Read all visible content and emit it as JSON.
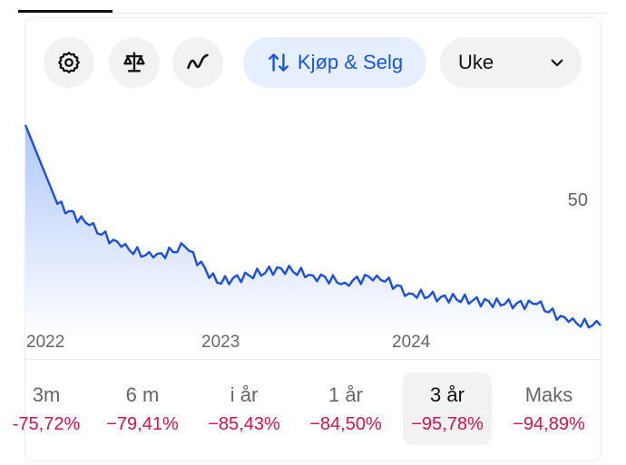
{
  "toolbar": {
    "settings_icon": "gear-icon",
    "compare_icon": "scale-icon",
    "indicator_icon": "wave-icon",
    "trade_icon": "arrows-up-down-icon",
    "trade_label": "Kjøp & Selg",
    "period_value": "Uke",
    "period_icon": "chevron-down-icon"
  },
  "colors": {
    "line": "#1a4fe6",
    "accent": "#1755e8",
    "negative": "#d1134f"
  },
  "chart_data": {
    "type": "area",
    "y_axis_labels": [
      "50"
    ],
    "x_axis_labels": [
      "2022",
      "2023",
      "2024"
    ],
    "x": [
      "2021-11",
      "2022-01",
      "2022-03",
      "2022-05",
      "2022-07",
      "2022-09",
      "2022-11",
      "2023-01",
      "2023-03",
      "2023-05",
      "2023-07",
      "2023-09",
      "2023-11",
      "2024-01",
      "2024-03",
      "2024-05",
      "2024-07",
      "2024-09",
      "2024-11"
    ],
    "series": [
      {
        "values": [
          80,
          58,
          52,
          46,
          43,
          46,
          36,
          38,
          40,
          38,
          36,
          38,
          33,
          32,
          31,
          30,
          30,
          25,
          24
        ]
      }
    ],
    "ylim": [
      20,
      82
    ],
    "grid": false,
    "legend": "none"
  },
  "ranges": [
    {
      "label": "3m",
      "change": "-75,72%"
    },
    {
      "label": "6 m",
      "change": "−79,41%"
    },
    {
      "label": "i år",
      "change": "−85,43%"
    },
    {
      "label": "1 år",
      "change": "−84,50%"
    },
    {
      "label": "3 år",
      "change": "−95,78%"
    },
    {
      "label": "Maks",
      "change": "−94,89%"
    }
  ]
}
